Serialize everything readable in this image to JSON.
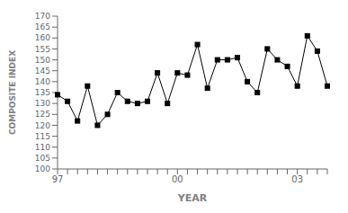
{
  "chart_data": {
    "type": "line",
    "xlabel": "YEAR",
    "ylabel": "COMPOSITE INDEX",
    "categories": [
      "97",
      null,
      null,
      null,
      null,
      null,
      null,
      null,
      null,
      null,
      null,
      null,
      "00",
      null,
      null,
      null,
      null,
      null,
      null,
      null,
      null,
      null,
      null,
      null,
      "03",
      null,
      null,
      null
    ],
    "values": [
      134,
      131,
      122,
      138,
      120,
      125,
      135,
      131,
      130,
      131,
      144,
      130,
      144,
      143,
      157,
      137,
      150,
      150,
      151,
      140,
      135,
      155,
      150,
      147,
      138,
      161,
      154,
      138
    ],
    "color": "#000000",
    "marker": "square",
    "ylim": [
      100,
      170
    ],
    "yticks": [
      100,
      105,
      110,
      115,
      120,
      125,
      130,
      135,
      140,
      145,
      150,
      155,
      160,
      165,
      170
    ],
    "grid": false
  }
}
